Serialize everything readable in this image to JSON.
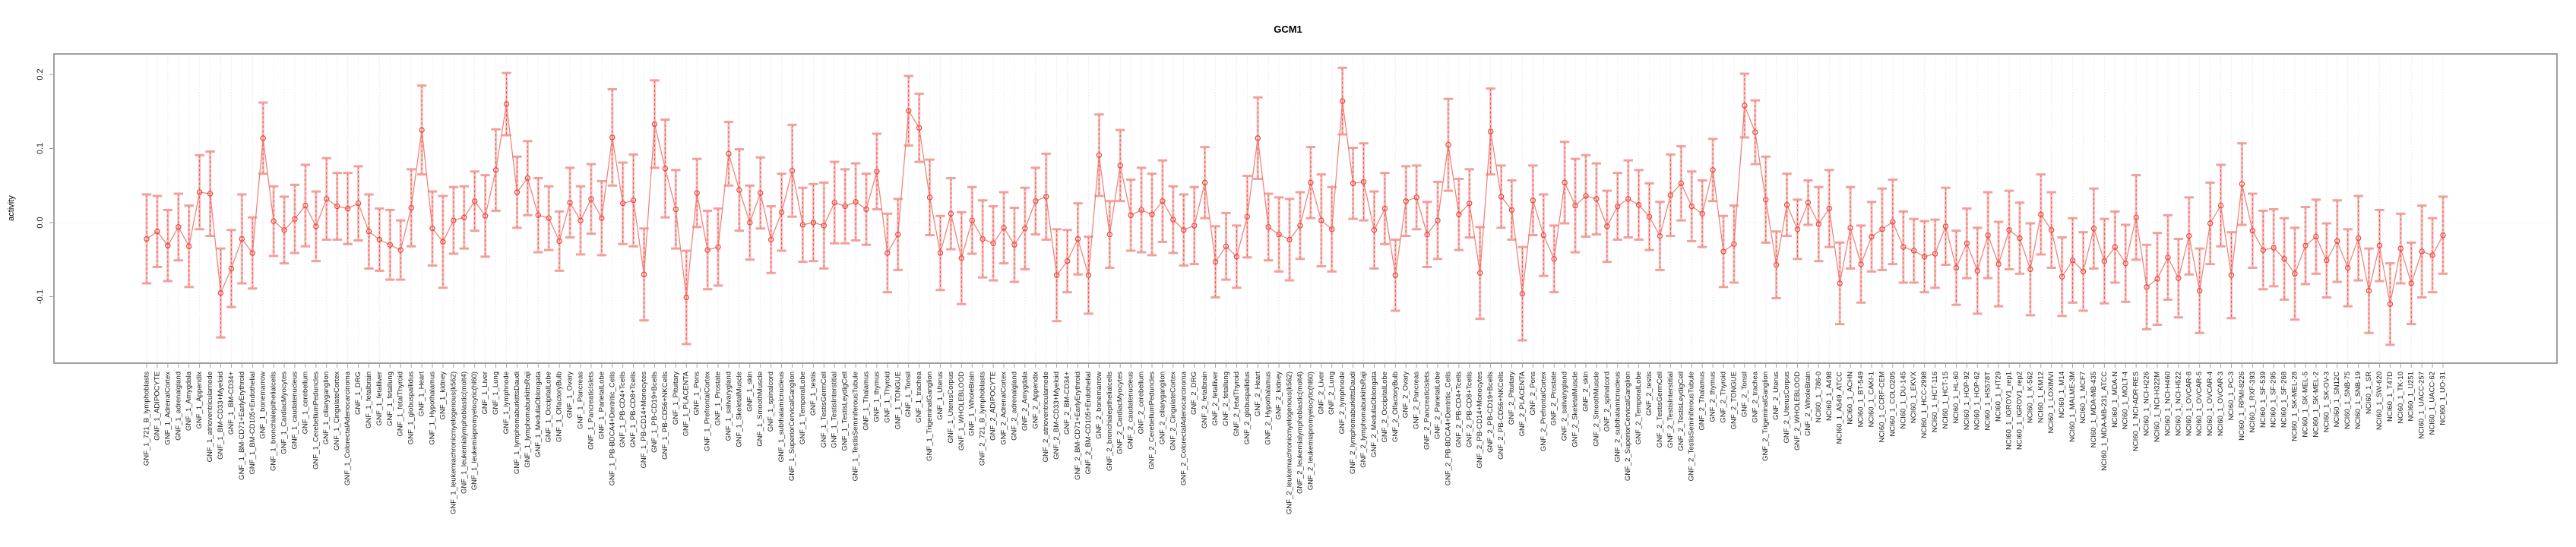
{
  "page": {
    "background": "#ffffff"
  },
  "chart_data": {
    "type": "line",
    "title": "GCM1",
    "ylabel": "activity",
    "xlabel": "",
    "error_bars": true,
    "marker": "open-circle",
    "grid": "vertical dotted per category, horizontal dotted at 0",
    "legend": "none",
    "ylim": [
      -0.19,
      0.23
    ],
    "yticks": [
      0.2,
      0.1,
      0,
      -0.1
    ],
    "ytick_labels": [
      "0.2",
      "0.1",
      "0.0",
      "-0.1"
    ],
    "point_color": "#e8463f",
    "line_color": "#f47b74",
    "errorbar_fill": "#f6b4b0",
    "errorbar_cap": "#f19c98",
    "grid_color": "#d9d9d9",
    "categories": [
      "GNF_1_721_B_lymphoblasts",
      "GNF_1_ADIPOCYTE",
      "GNF_1_AdrenalCortex",
      "GNF_1_adrenalgland",
      "GNF_1_Amygdala",
      "GNF_1_Appendix",
      "GNF_1_atrioventricularnode",
      "GNF_1_BM-CD33+Myeloid",
      "GNF_1_BM-CD34+",
      "GNF_1_BM-CD71+EarlyErythroid",
      "GNF_1_BM-CD105+Endothelial",
      "GNF_1_bonemarrow",
      "GNF_1_bronchialepithelialcells",
      "GNF_1_CardiacMyocytes",
      "GNF_1_caudatenucleus",
      "GNF_1_cerebellum",
      "GNF_1_CerebellumPeduncles",
      "GNF_1_ciliaryganglion",
      "GNF_1_CingulateCortex",
      "GNF_1_ColorectalAdenocarcinoma",
      "GNF_1_DRG",
      "GNF_1_fetalbrain",
      "GNF_1_fetalliver",
      "GNF_1_fetallung",
      "GNF_1_fetalThyroid",
      "GNF_1_globuspallidus",
      "GNF_1_Heart",
      "GNF_1_Hypothalamus",
      "GNF_1_kidney",
      "GNF_1_leukemiachronicmyelogenous(k562)",
      "GNF_1_leukemialymphoblastic(molt4)",
      "GNF_1_leukemiapromyelocytic(hl60)",
      "GNF_1_Liver",
      "GNF_1_Lung",
      "GNF_1_lymphnode",
      "GNF_1_lymphomaburkittsDaudi",
      "GNF_1_lymphomaburkittsRaji",
      "GNF_1_MedullaOblongata",
      "GNF_1_OccipitalLobe",
      "GNF_1_OlfactoryBulb",
      "GNF_1_Ovary",
      "GNF_1_Pancreas",
      "GNF_1_PancreaticIslets",
      "GNF_1_ParietalLobe",
      "GNF_1_PB-BDCA4+Dentritic_Cells",
      "GNF_1_PB-CD4+Tcells",
      "GNF_1_PB-CD8+Tcells",
      "GNF_1_PB-CD14+Monocytes",
      "GNF_1_PB-CD19+Bcells",
      "GNF_1_PB-CD56+NKCells",
      "GNF_1_Pituitary",
      "GNF_1_PLACENTA",
      "GNF_1_Pons",
      "GNF_1_PrefrontalCortex",
      "GNF_1_Prostate",
      "GNF_1_salivarygland",
      "GNF_1_SkeletalMuscle",
      "GNF_1_skin",
      "GNF_1_SmoothMuscle",
      "GNF_1_spinalcord",
      "GNF_1_subthalamicnucleus",
      "GNF_1_SuperiorCervicalGanglion",
      "GNF_1_TemporalLobe",
      "GNF_1_testis",
      "GNF_1_TestisGermCell",
      "GNF_1_TestisInterstitial",
      "GNF_1_TestisLeydigCell",
      "GNF_1_TestisSeminiferousTubule",
      "GNF_1_Thalamus",
      "GNF_1_thymus",
      "GNF_1_Thyroid",
      "GNF_1_TONGUE",
      "GNF_1_Tonsil",
      "GNF_1_trachea",
      "GNF_1_TrigeminalGanglion",
      "GNF_1_Uterus",
      "GNF_1_UterusCorpus",
      "GNF_1_WHOLEBLOOD",
      "GNF_1_WholeBrain",
      "GNF_2_721_B_lymphoblasts",
      "GNF_2_ADIPOCYTE",
      "GNF_2_AdrenalCortex",
      "GNF_2_adrenalgland",
      "GNF_2_Amygdala",
      "GNF_2_Appendix",
      "GNF_2_atrioventricularnode",
      "GNF_2_BM-CD33+Myeloid",
      "GNF_2_BM-CD34+",
      "GNF_2_BM-CD71+EarlyErythroid",
      "GNF_2_BM-CD105+Endothelial",
      "GNF_2_bonemarrow",
      "GNF_2_bronchialepithelialcells",
      "GNF_2_CardiacMyocytes",
      "GNF_2_caudatenucleus",
      "GNF_2_cerebellum",
      "GNF_2_CerebellumPeduncles",
      "GNF_2_ciliaryganglion",
      "GNF_2_CingulateCortex",
      "GNF_2_ColorectalAdenocarcinoma",
      "GNF_2_DRG",
      "GNF_2_fetalbrain",
      "GNF_2_fetalliver",
      "GNF_2_fetallung",
      "GNF_2_fetalThyroid",
      "GNF_2_globuspallidus",
      "GNF_2_Heart",
      "GNF_2_Hypothalamus",
      "GNF_2_kidney",
      "GNF_2_leukemiachronicmyelogenous(k562)",
      "GNF_2_leukemialymphoblastic(molt4)",
      "GNF_2_leukemiapromyelocytic(hl60)",
      "GNF_2_Liver",
      "GNF_2_Lung",
      "GNF_2_lymphnode",
      "GNF_2_lymphomaburkittsDaudi",
      "GNF_2_lymphomaburkittsRaji",
      "GNF_2_MedullaOblongata",
      "GNF_2_OccipitalLobe",
      "GNF_2_OlfactoryBulb",
      "GNF_2_Ovary",
      "GNF_2_Pancreas",
      "GNF_2_PancreaticIslets",
      "GNF_2_ParietalLobe",
      "GNF_2_PB-BDCA4+Dentritic_Cells",
      "GNF_2_PB-CD4+Tcells",
      "GNF_2_PB-CD8+Tcells",
      "GNF_2_PB-CD14+Monocytes",
      "GNF_2_PB-CD19+Bcells",
      "GNF_2_PB-CD56+NKCells",
      "GNF_2_Pituitary",
      "GNF_2_PLACENTA",
      "GNF_2_Pons",
      "GNF_2_PrefrontalCortex",
      "GNF_2_Prostate",
      "GNF_2_salivarygland",
      "GNF_2_SkeletalMuscle",
      "GNF_2_skin",
      "GNF_2_SmoothMuscle",
      "GNF_2_spinalcord",
      "GNF_2_subthalamicnucleus",
      "GNF_2_SuperiorCervicalGanglion",
      "GNF_2_TemporalLobe",
      "GNF_2_testis",
      "GNF_2_TestisGermCell",
      "GNF_2_TestisInterstitial",
      "GNF_2_TestisLeydigCell",
      "GNF_2_TestisSeminiferousTubule",
      "GNF_2_Thalamus",
      "GNF_2_thymus",
      "GNF_2_Thyroid",
      "GNF_2_TONGUE",
      "GNF_2_Tonsil",
      "GNF_2_trachea",
      "GNF_2_TrigeminalGanglion",
      "GNF_2_Uterus",
      "GNF_2_UterusCorpus",
      "GNF_2_WHOLEBLOOD",
      "GNF_2_WholeBrain",
      "NCI60_1_786-0",
      "NCI60_1_A498",
      "NCI60_1_A549_ATCC",
      "NCI60_1_ACHN",
      "NCI60_1_BT-549",
      "NCI60_1_CAKI-1",
      "NCI60_1_CCRF-CEM",
      "NCI60_1_COLO205",
      "NCI60_1_DU-145",
      "NCI60_1_EKVX",
      "NCI60_1_HCC-2998",
      "NCI60_1_HCT-116",
      "NCI60_1_HCT-15",
      "NCI60_1_HL-60",
      "NCI60_1_HOP-92",
      "NCI60_1_HOP-62",
      "NCI60_1_HS578T",
      "NCI60_1_HT29",
      "NCI60_1_IGROV1_rep1",
      "NCI60_1_IGROV1_rep2",
      "NCI60_1_K-562",
      "NCI60_1_KM12",
      "NCI60_1_LOXIMVI",
      "NCI60_1_M14",
      "NCI60_1_MALME-3M",
      "NCI60_1_MCF7",
      "NCI60_1_MDA-MB-435",
      "NCI60_1_MDA-MB-231_ATCC",
      "NCI60_1_MDA-N",
      "NCI60_1_MOLT-4",
      "NCI60_1_NCI-ADR-RES",
      "NCI60_1_NCI-H226",
      "NCI60_1_NCI-H322M",
      "NCI60_1_NCI-H460",
      "NCI60_1_NCI-H522",
      "NCI60_1_OVCAR-8",
      "NCI60_1_OVCAR-5",
      "NCI60_1_OVCAR-4",
      "NCI60_1_OVCAR-3",
      "NCI60_1_PC-3",
      "NCI60_1_RPMI-8226",
      "NCI60_1_RXF-393",
      "NCI60_1_SF-539",
      "NCI60_1_SF-295",
      "NCI60_1_SF-268",
      "NCI60_1_SK-MEL-28",
      "NCI60_1_SK-MEL-5",
      "NCI60_1_SK-MEL-2",
      "NCI60_1_SK-OV-3",
      "NCI60_1_SN12C",
      "NCI60_1_SNB-75",
      "NCI60_1_SNB-19",
      "NCI60_1_SR",
      "NCI60_1_SW-620",
      "NCI60_1_T47D",
      "NCI60_1_TK-10",
      "NCI60_1_U251",
      "NCI60_1_UACC-257",
      "NCI60_1_UACC-62",
      "NCI60_1_UO-31"
    ],
    "values": [
      -0.022,
      -0.012,
      -0.031,
      -0.006,
      -0.032,
      0.041,
      0.039,
      -0.095,
      -0.062,
      -0.022,
      -0.041,
      0.114,
      0.002,
      -0.01,
      0.005,
      0.023,
      -0.005,
      0.032,
      0.022,
      0.019,
      0.026,
      -0.012,
      -0.023,
      -0.03,
      -0.037,
      0.02,
      0.125,
      -0.008,
      -0.026,
      0.003,
      0.007,
      0.029,
      0.009,
      0.071,
      0.16,
      0.041,
      0.06,
      0.01,
      0.006,
      -0.025,
      0.027,
      0.003,
      0.032,
      0.006,
      0.115,
      0.026,
      0.03,
      -0.07,
      0.133,
      0.073,
      0.018,
      -0.101,
      0.04,
      -0.037,
      -0.033,
      0.093,
      0.044,
      0.0,
      0.04,
      -0.023,
      0.014,
      0.07,
      -0.003,
      0.0,
      -0.004,
      0.027,
      0.022,
      0.028,
      0.018,
      0.069,
      -0.041,
      -0.016,
      0.151,
      0.128,
      0.034,
      -0.041,
      0.012,
      -0.048,
      0.003,
      -0.022,
      -0.028,
      -0.007,
      -0.03,
      -0.008,
      0.029,
      0.035,
      -0.071,
      -0.052,
      -0.022,
      -0.071,
      0.091,
      -0.016,
      0.077,
      0.01,
      0.017,
      0.011,
      0.029,
      0.004,
      -0.01,
      -0.004,
      0.054,
      -0.053,
      -0.032,
      -0.046,
      0.008,
      0.114,
      -0.006,
      -0.016,
      -0.023,
      -0.004,
      0.054,
      0.003,
      -0.009,
      0.164,
      0.053,
      0.055,
      -0.01,
      0.019,
      -0.071,
      0.029,
      0.034,
      -0.016,
      0.003,
      0.105,
      0.011,
      0.026,
      -0.068,
      0.123,
      0.035,
      0.017,
      -0.096,
      0.03,
      -0.017,
      -0.049,
      0.054,
      0.023,
      0.036,
      0.032,
      -0.005,
      0.022,
      0.032,
      0.024,
      0.008,
      -0.018,
      0.037,
      0.053,
      0.022,
      0.012,
      0.071,
      -0.039,
      -0.029,
      0.158,
      0.122,
      0.031,
      -0.057,
      0.024,
      -0.009,
      0.027,
      -0.002,
      0.019,
      -0.082,
      -0.007,
      -0.056,
      -0.019,
      -0.009,
      0.001,
      -0.033,
      -0.038,
      -0.046,
      -0.042,
      -0.005,
      -0.061,
      -0.028,
      -0.065,
      -0.017,
      -0.056,
      -0.01,
      -0.021,
      -0.063,
      0.011,
      -0.01,
      -0.073,
      -0.051,
      -0.066,
      -0.008,
      -0.052,
      -0.033,
      -0.055,
      0.007,
      -0.087,
      -0.076,
      -0.047,
      -0.075,
      -0.018,
      -0.092,
      -0.001,
      0.023,
      -0.071,
      0.052,
      -0.011,
      -0.037,
      -0.034,
      -0.049,
      -0.069,
      -0.031,
      -0.019,
      -0.051,
      -0.025,
      -0.061,
      -0.021,
      -0.092,
      -0.031,
      -0.11,
      -0.035,
      -0.082,
      -0.039,
      -0.044,
      -0.017
    ],
    "errors": [
      0.06,
      0.048,
      0.048,
      0.045,
      0.055,
      0.05,
      0.057,
      0.06,
      0.052,
      0.06,
      0.048,
      0.048,
      0.047,
      0.045,
      0.046,
      0.055,
      0.047,
      0.055,
      0.045,
      0.048,
      0.05,
      0.05,
      0.042,
      0.047,
      0.04,
      0.052,
      0.06,
      0.05,
      0.062,
      0.045,
      0.042,
      0.04,
      0.055,
      0.055,
      0.042,
      0.048,
      0.05,
      0.05,
      0.043,
      0.04,
      0.047,
      0.046,
      0.047,
      0.05,
      0.065,
      0.055,
      0.062,
      0.062,
      0.059,
      0.066,
      0.053,
      0.063,
      0.046,
      0.053,
      0.052,
      0.043,
      0.055,
      0.05,
      0.048,
      0.045,
      0.052,
      0.062,
      0.05,
      0.052,
      0.058,
      0.055,
      0.05,
      0.052,
      0.048,
      0.051,
      0.053,
      0.048,
      0.047,
      0.046,
      0.051,
      0.05,
      0.048,
      0.062,
      0.045,
      0.052,
      0.05,
      0.048,
      0.05,
      0.055,
      0.045,
      0.058,
      0.062,
      0.042,
      0.048,
      0.052,
      0.055,
      0.045,
      0.048,
      0.048,
      0.057,
      0.055,
      0.055,
      0.045,
      0.048,
      0.052,
      0.048,
      0.048,
      0.045,
      0.042,
      0.055,
      0.055,
      0.045,
      0.05,
      0.055,
      0.045,
      0.048,
      0.062,
      0.057,
      0.045,
      0.048,
      0.052,
      0.052,
      0.048,
      0.048,
      0.047,
      0.043,
      0.044,
      0.052,
      0.062,
      0.048,
      0.046,
      0.062,
      0.058,
      0.042,
      0.04,
      0.063,
      0.047,
      0.055,
      0.045,
      0.055,
      0.063,
      0.055,
      0.048,
      0.048,
      0.045,
      0.052,
      0.047,
      0.045,
      0.046,
      0.055,
      0.05,
      0.047,
      0.045,
      0.042,
      0.048,
      0.052,
      0.043,
      0.043,
      0.058,
      0.045,
      0.042,
      0.04,
      0.03,
      0.05,
      0.052,
      0.055,
      0.055,
      0.052,
      0.047,
      0.055,
      0.057,
      0.048,
      0.043,
      0.048,
      0.046,
      0.052,
      0.05,
      0.047,
      0.058,
      0.058,
      0.057,
      0.053,
      0.048,
      0.062,
      0.054,
      0.051,
      0.053,
      0.057,
      0.053,
      0.054,
      0.057,
      0.048,
      0.052,
      0.057,
      0.057,
      0.062,
      0.057,
      0.053,
      0.052,
      0.057,
      0.055,
      0.055,
      0.058,
      0.055,
      0.05,
      0.053,
      0.052,
      0.055,
      0.062,
      0.052,
      0.05,
      0.05,
      0.055,
      0.052,
      0.057,
      0.057,
      0.048,
      0.055,
      0.047,
      0.055,
      0.062,
      0.05,
      0.052
    ]
  }
}
